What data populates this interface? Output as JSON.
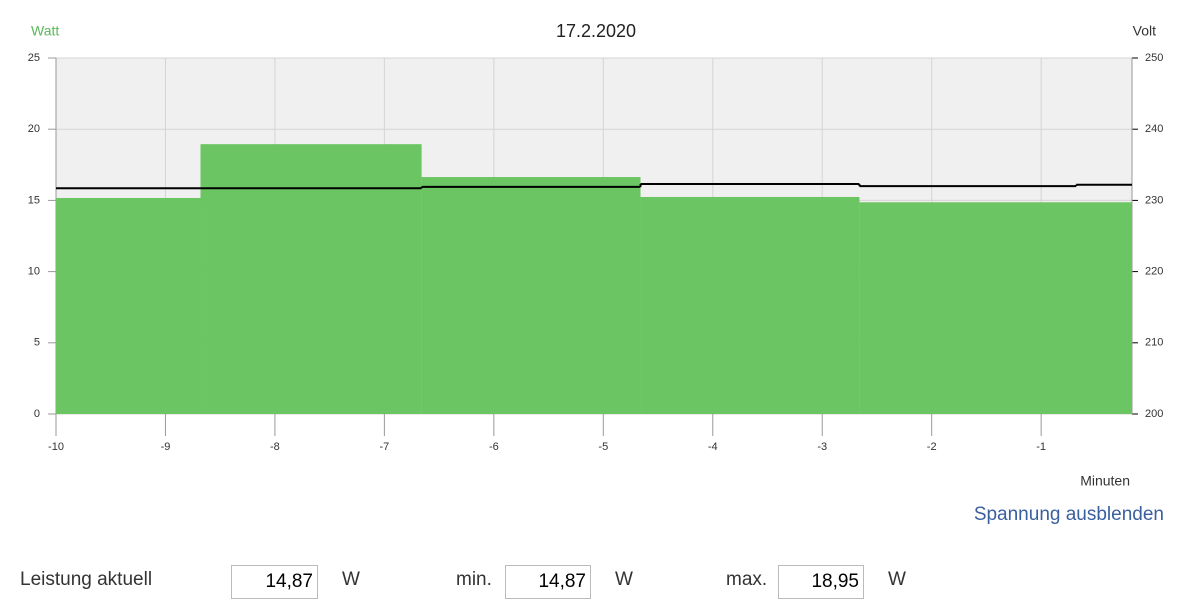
{
  "chart_data": {
    "type": "step",
    "title": "17.2.2020",
    "y_label": "Watt",
    "y2_label": "Volt",
    "x_label": "Minuten",
    "xlim": [
      -10,
      -0.17
    ],
    "xticks": [
      -10,
      -9,
      -8,
      -7,
      -6,
      -5,
      -4,
      -3,
      -2,
      -1
    ],
    "ylim": [
      0,
      25
    ],
    "yticks": [
      0,
      5,
      10,
      15,
      20,
      25
    ],
    "y2lim": [
      200,
      250
    ],
    "y2ticks": [
      200,
      210,
      220,
      230,
      240,
      250
    ],
    "grid": true,
    "series": [
      {
        "name": "Watt",
        "color": "#6cc563",
        "x": [
          -10,
          -8.68,
          -6.66,
          -4.66,
          -2.66
        ],
        "values": [
          15.17,
          18.95,
          16.64,
          15.24,
          14.87
        ]
      },
      {
        "name": "Volt",
        "color": "#000000",
        "axis": "y2",
        "x": [
          -10,
          -8.68,
          -6.66,
          -4.66,
          -2.66,
          -0.68
        ],
        "values": [
          231.7,
          231.7,
          231.9,
          232.3,
          232.0,
          232.2
        ]
      }
    ]
  },
  "link": "Spannung ausblenden",
  "form": {
    "current_label": "Leistung aktuell",
    "current_value": "14,87",
    "current_unit": "W",
    "min_label": "min.",
    "min_value": "14,87",
    "min_unit": "W",
    "max_label": "max.",
    "max_value": "18,95",
    "max_unit": "W"
  }
}
